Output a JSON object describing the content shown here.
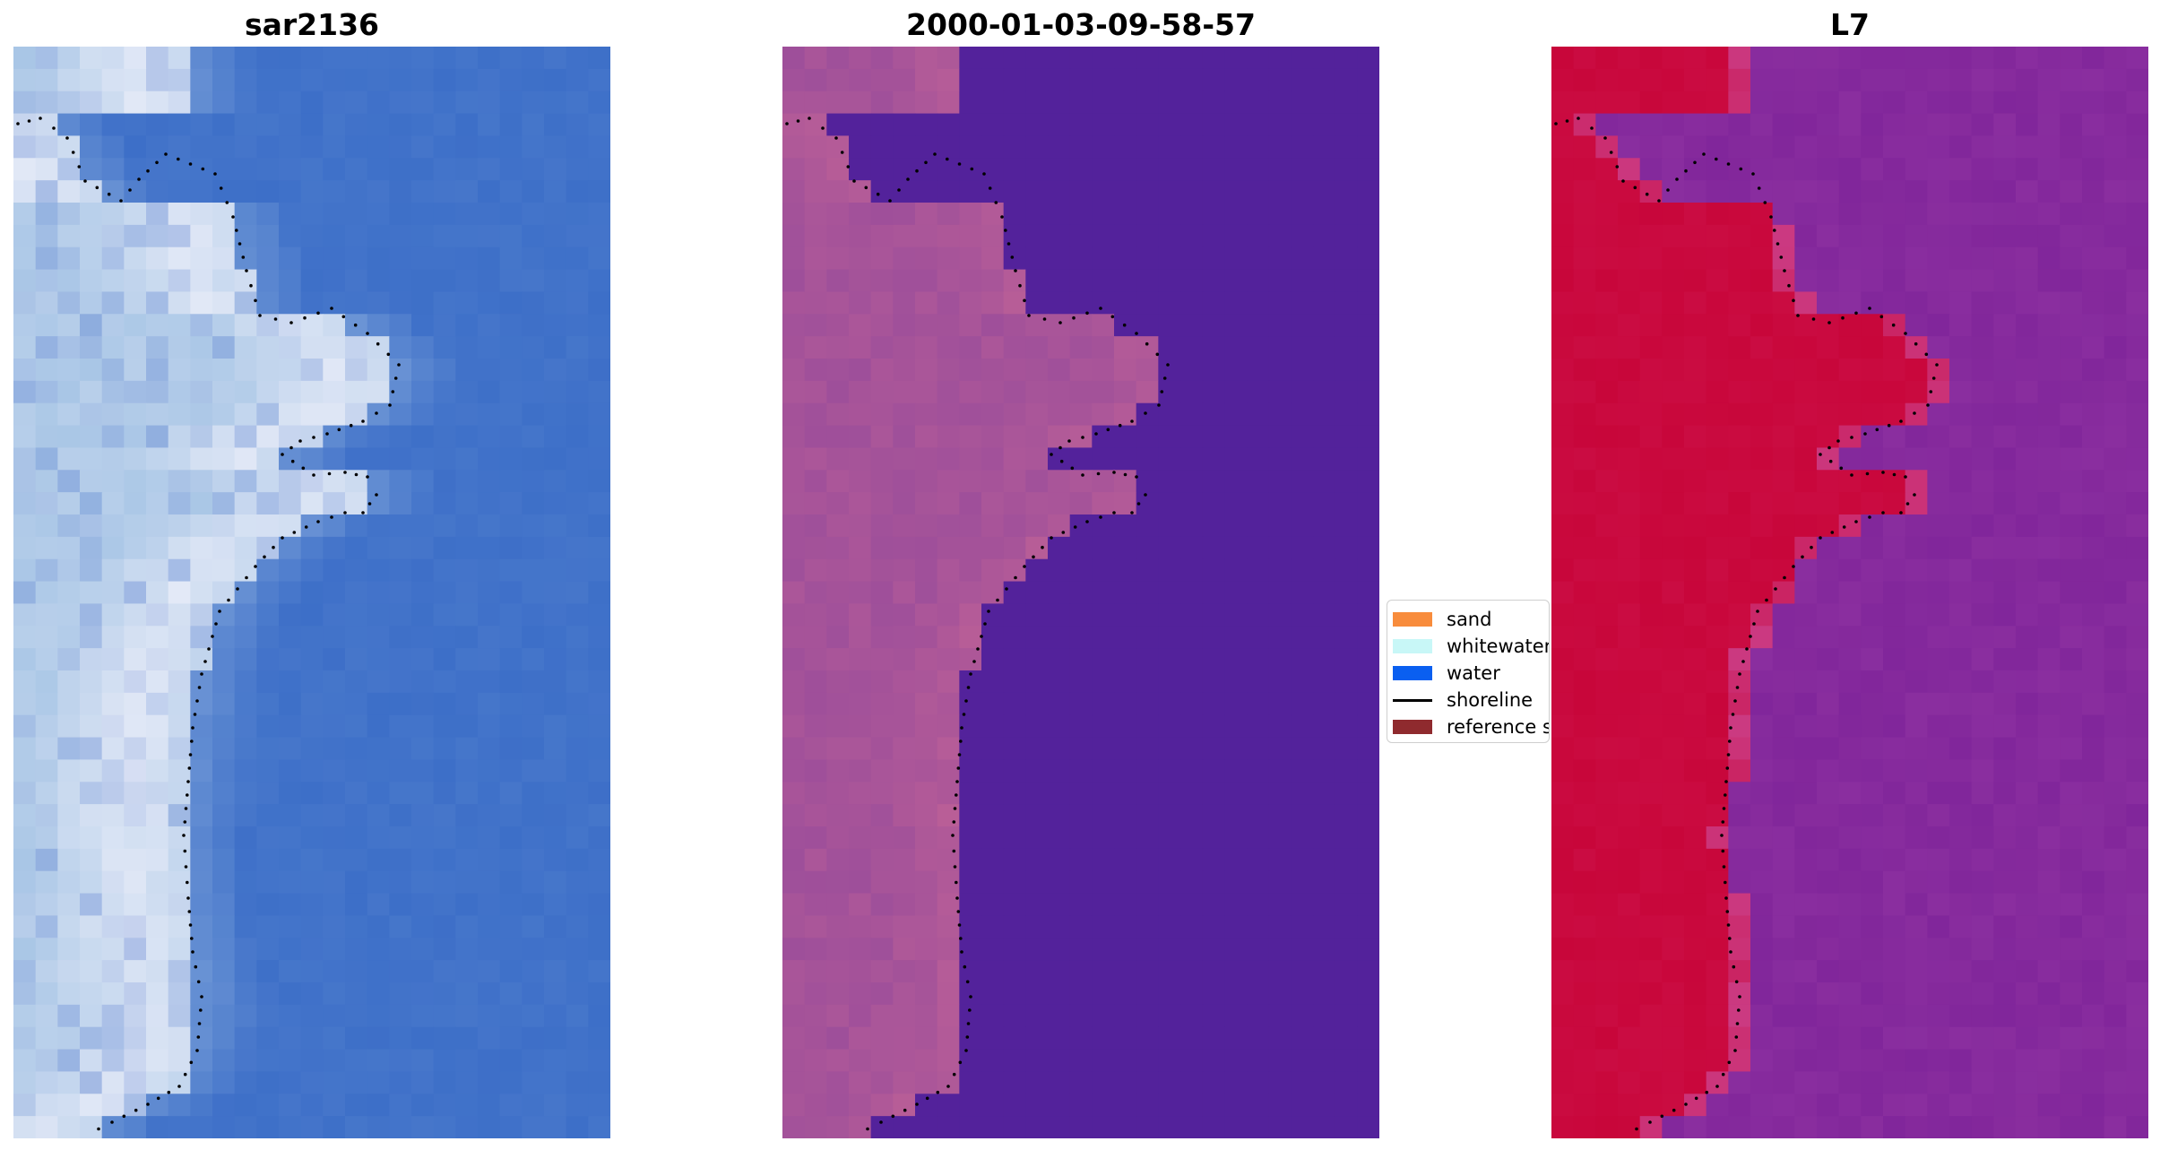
{
  "panels": [
    {
      "title": "sar2136",
      "view": "rgb"
    },
    {
      "title": "2000-01-03-09-58-57",
      "view": "classified"
    },
    {
      "title": "L7",
      "view": "index"
    }
  ],
  "legend": {
    "items": [
      {
        "label": "sand",
        "color": "#f88c3c",
        "kind": "patch"
      },
      {
        "label": "whitewater",
        "color": "#c8f7f7",
        "kind": "patch"
      },
      {
        "label": "water",
        "color": "#0a5ff0",
        "kind": "patch"
      },
      {
        "label": "shoreline",
        "color": "#000000",
        "kind": "line"
      },
      {
        "label": "reference shoreline buffer",
        "color": "#8f2a2e",
        "kind": "patch"
      }
    ]
  },
  "colors": {
    "rgb_water": "#3d6fc8",
    "rgb_land": "#a9c6e6",
    "rgb_bright": "#f2f2fb",
    "class_water": "#53229b",
    "class_land": "#9e4f9a",
    "index_water": "#8a2e9f",
    "index_land": "#c8063a",
    "shoreline_dots": "#000000"
  }
}
